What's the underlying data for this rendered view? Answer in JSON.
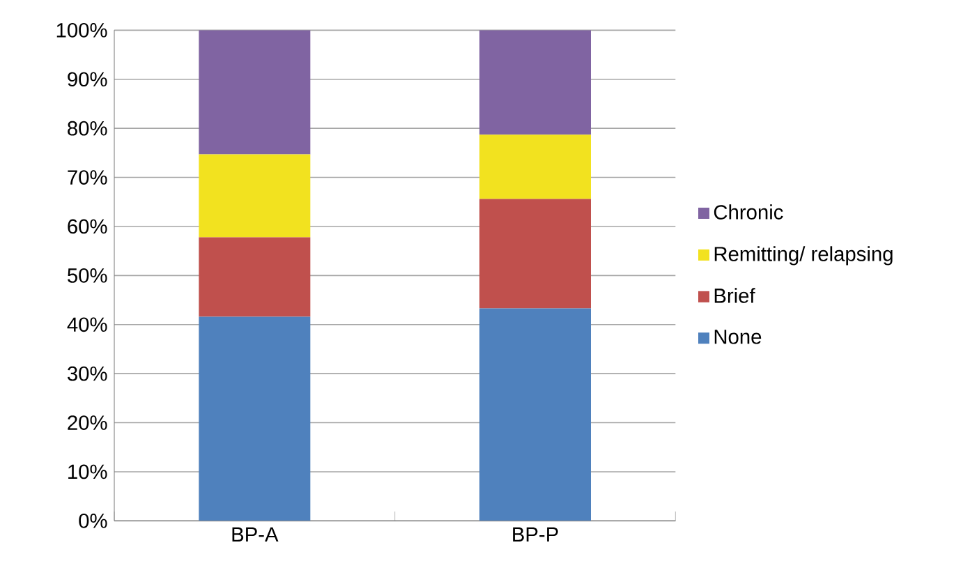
{
  "chart_data": {
    "type": "bar",
    "stacked": true,
    "categories": [
      "BP-A",
      "BP-P"
    ],
    "series": [
      {
        "name": "None",
        "color": "#4f81bd",
        "values": [
          41.6,
          43.3
        ]
      },
      {
        "name": "Brief",
        "color": "#c0504d",
        "values": [
          16.2,
          22.3
        ]
      },
      {
        "name": "Remitting/ relapsing",
        "color": "#f2e21f",
        "values": [
          16.9,
          13.1
        ]
      },
      {
        "name": "Chronic",
        "color": "#8064a2",
        "values": [
          25.3,
          21.3
        ]
      }
    ],
    "ylim": [
      0,
      100
    ],
    "yticks": [
      {
        "value": 0,
        "label": "0%"
      },
      {
        "value": 10,
        "label": "10%"
      },
      {
        "value": 20,
        "label": "20%"
      },
      {
        "value": 30,
        "label": "30%"
      },
      {
        "value": 40,
        "label": "40%"
      },
      {
        "value": 50,
        "label": "50%"
      },
      {
        "value": 60,
        "label": "60%"
      },
      {
        "value": 70,
        "label": "70%"
      },
      {
        "value": 80,
        "label": "80%"
      },
      {
        "value": 90,
        "label": "90%"
      },
      {
        "value": 100,
        "label": "100%"
      }
    ],
    "grid": "y",
    "legend": "right"
  }
}
